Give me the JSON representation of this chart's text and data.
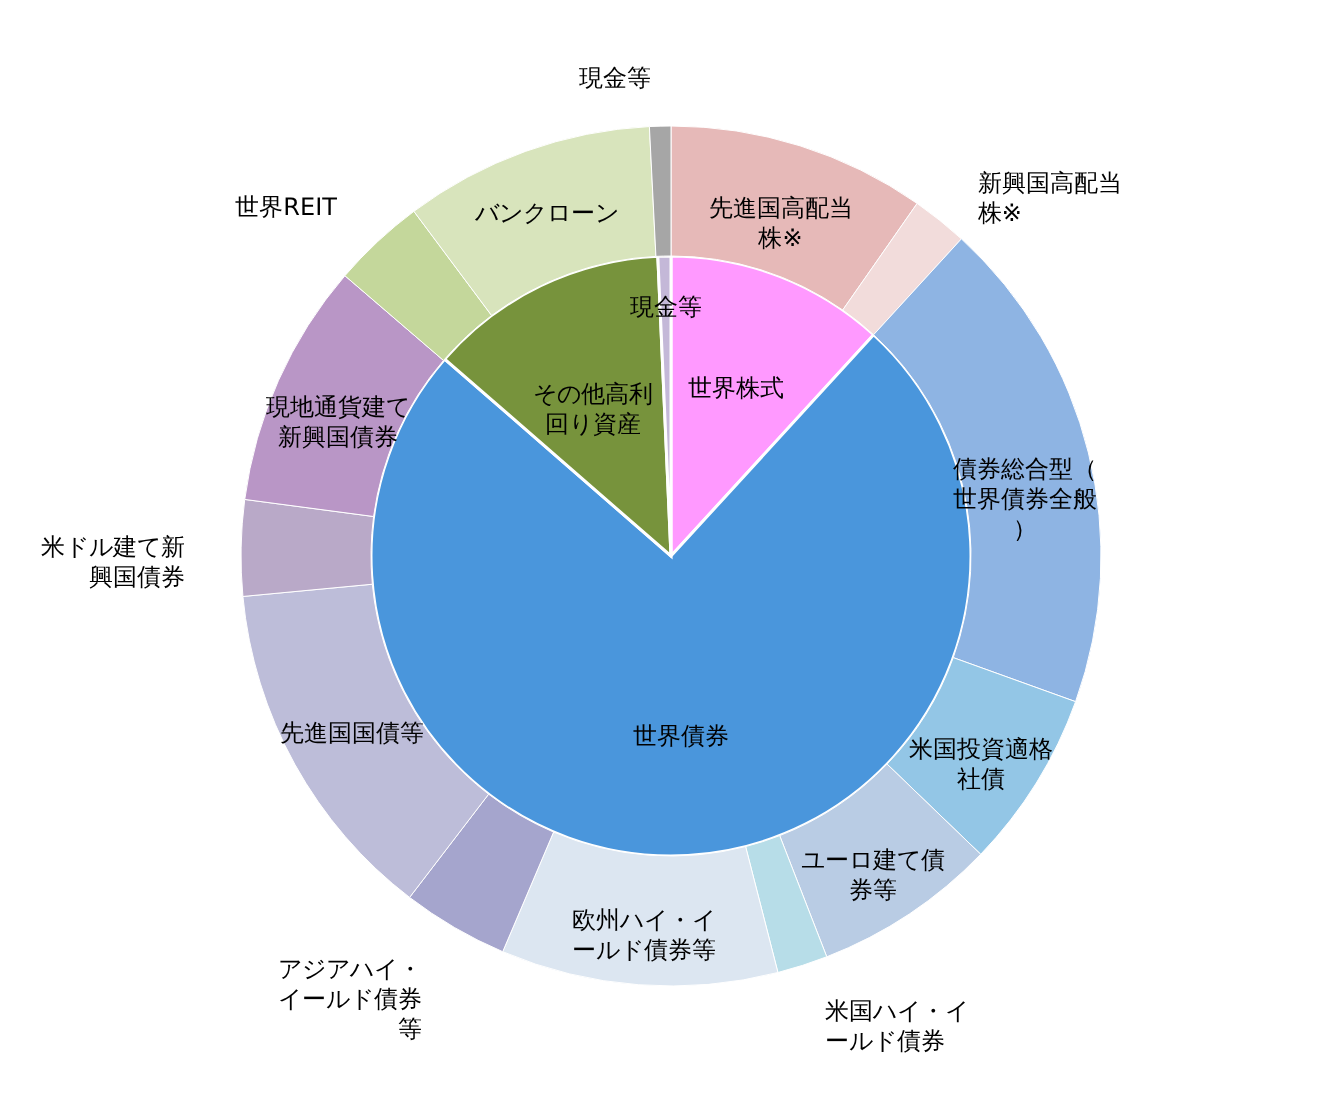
{
  "chart_data": [
    {
      "type": "pie",
      "categories": [
        "世界株式",
        "世界債券",
        "その他高利回り資産",
        "現金等"
      ],
      "values": [
        11.8,
        74.6,
        12.9,
        0.7
      ],
      "colors": [
        "#ff99ff",
        "#4a96dc",
        "#77933c",
        "#c4b8d8"
      ]
    },
    {
      "type": "donut",
      "categories": [
        "先進国高配当株※",
        "新興国高配当株※",
        "債券総合型（世界債券全般）",
        "米国投資適格社債",
        "ユーロ建て債券等",
        "米国ハイ・イールド債券",
        "欧州ハイ・イールド債券等",
        "アジアハイ・イールド債券等",
        "先進国国債等",
        "米ドル建て新興国債券",
        "現地通貨建て新興国債券",
        "世界REIT",
        "バンクローン",
        "現金等"
      ],
      "values": [
        9.7,
        2.1,
        18.7,
        6.7,
        6.9,
        1.9,
        10.4,
        4.0,
        13.1,
        3.6,
        9.2,
        3.5,
        9.4,
        0.8
      ],
      "colors": [
        "#e6b9b8",
        "#f2dcdb",
        "#8eb4e3",
        "#93c6e6",
        "#b9cce4",
        "#b7dde8",
        "#dce6f1",
        "#a5a5cd",
        "#bdbdd9",
        "#b9a9c8",
        "#b996c6",
        "#c4d79b",
        "#d8e4bc",
        "#a6a6a6"
      ]
    }
  ]
}
